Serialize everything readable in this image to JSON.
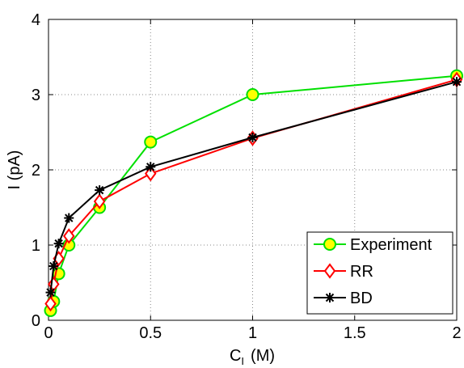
{
  "chart_data": {
    "type": "line",
    "xlabel": "C",
    "xlabel_sub": "I",
    "xlabel_unit": "(M)",
    "ylabel": "I (pA)",
    "xlim": [
      0,
      2
    ],
    "ylim": [
      0,
      4
    ],
    "x_tick_labels": [
      "0",
      "0.5",
      "1",
      "1.5",
      "2"
    ],
    "y_tick_labels": [
      "0",
      "1",
      "2",
      "3",
      "4"
    ],
    "grid": true,
    "legend_position": "bottom-right",
    "series": [
      {
        "name": "Experiment",
        "color": "#00e000",
        "marker": "circle",
        "marker_fill": "#ffff00",
        "x": [
          0.01,
          0.025,
          0.05,
          0.1,
          0.25,
          0.5,
          1,
          2
        ],
        "y": [
          0.13,
          0.25,
          0.62,
          1.0,
          1.5,
          2.37,
          3.0,
          3.25
        ]
      },
      {
        "name": "RR",
        "color": "#ff0000",
        "marker": "diamond",
        "marker_fill": "#ffffff",
        "x": [
          0.01,
          0.025,
          0.05,
          0.1,
          0.25,
          0.5,
          1,
          2
        ],
        "y": [
          0.22,
          0.48,
          0.82,
          1.12,
          1.58,
          1.95,
          2.42,
          3.2
        ]
      },
      {
        "name": "BD",
        "color": "#000000",
        "marker": "asterisk",
        "marker_fill": "none",
        "x": [
          0.01,
          0.025,
          0.05,
          0.1,
          0.25,
          0.5,
          1,
          2
        ],
        "y": [
          0.37,
          0.72,
          1.02,
          1.36,
          1.73,
          2.04,
          2.43,
          3.17
        ]
      }
    ]
  }
}
